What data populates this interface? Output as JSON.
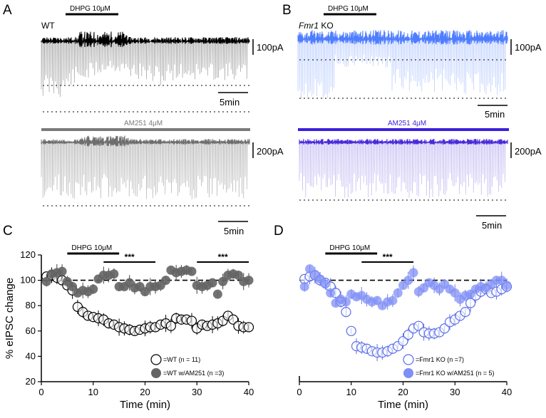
{
  "panels": {
    "a_label": "A",
    "b_label": "B",
    "c_label": "C",
    "d_label": "D",
    "dhpg_label": "DHPG 10μM",
    "wt_label": "WT",
    "fmr1_italic": "Fmr1",
    "ko_text": " KO",
    "am251_label": "AM251 4μM",
    "scale_100pA": "100pA",
    "scale_200pA": "200pA",
    "scale_5min": "5min",
    "sig_label": "***"
  },
  "colors": {
    "wt_trace": "#000000",
    "wt_am251_trace": "#6e6e6e",
    "ko_trace": "#4f7dff",
    "ko_am251_trace": "#4a2bd9",
    "ko_marker": "#7f8ff5",
    "wt_am251_marker": "#646464",
    "am251_bar_left": "#7a7a7a",
    "am251_bar_right": "#3b1fdc"
  },
  "chart_data": [
    {
      "type": "scatter",
      "panel": "C",
      "xlabel": "Time (min)",
      "ylabel": "% eIPSC change",
      "xlim": [
        0,
        40
      ],
      "ylim": [
        20,
        120
      ],
      "x_ticks": [
        0,
        10,
        20,
        30,
        40
      ],
      "y_ticks": [
        20,
        40,
        60,
        80,
        100,
        120
      ],
      "baseline": 100,
      "drug_bar": {
        "label": "DHPG 10μM",
        "from": 5,
        "to": 15
      },
      "significance": [
        {
          "label": "***",
          "from": 12,
          "to": 22
        },
        {
          "label": "***",
          "from": 30,
          "to": 40
        }
      ],
      "series": [
        {
          "name": "=WT (n = 11)",
          "marker": "open",
          "x": [
            1,
            2,
            3,
            4,
            5,
            6,
            7,
            8,
            9,
            10,
            11,
            12,
            13,
            14,
            15,
            16,
            17,
            18,
            19,
            20,
            21,
            22,
            23,
            24,
            25,
            26,
            27,
            28,
            29,
            30,
            31,
            32,
            33,
            34,
            35,
            36,
            37,
            38,
            39,
            40
          ],
          "y": [
            103,
            104,
            102,
            100,
            96,
            92,
            79,
            75,
            72,
            71,
            70,
            69,
            66,
            65,
            63,
            62,
            61,
            60,
            61,
            62,
            63,
            63,
            65,
            66,
            64,
            70,
            69,
            69,
            68,
            62,
            65,
            64,
            65,
            66,
            68,
            72,
            69,
            64,
            63,
            63
          ]
        },
        {
          "name": "=WT w/AM251 (n =3)",
          "marker": "filled",
          "x": [
            1,
            2,
            3,
            4,
            5,
            6,
            7,
            8,
            9,
            10,
            11,
            12,
            13,
            14,
            15,
            16,
            17,
            18,
            19,
            20,
            21,
            22,
            23,
            24,
            25,
            26,
            27,
            28,
            29,
            30,
            31,
            32,
            33,
            34,
            35,
            36,
            37,
            38,
            39,
            40
          ],
          "y": [
            99,
            105,
            106,
            107,
            99,
            95,
            90,
            92,
            91,
            93,
            101,
            104,
            104,
            105,
            95,
            95,
            98,
            94,
            95,
            91,
            95,
            95,
            96,
            100,
            108,
            106,
            107,
            108,
            107,
            96,
            95,
            96,
            98,
            89,
            99,
            104,
            105,
            104,
            99,
            100
          ]
        }
      ]
    },
    {
      "type": "scatter",
      "panel": "D",
      "xlabel": "Time (min)",
      "xlim": [
        0,
        40
      ],
      "ylim": [
        20,
        120
      ],
      "x_ticks": [
        0,
        10,
        20,
        30,
        40
      ],
      "baseline": 100,
      "drug_bar": {
        "label": "DHPG 10μM",
        "from": 5,
        "to": 15
      },
      "significance": [
        {
          "label": "***",
          "from": 12,
          "to": 22
        }
      ],
      "series": [
        {
          "name": "=Fmr1 KO (n =7)",
          "marker": "open",
          "x": [
            1,
            2,
            3,
            4,
            5,
            6,
            7,
            8,
            9,
            10,
            11,
            12,
            13,
            14,
            15,
            16,
            17,
            18,
            19,
            20,
            21,
            22,
            23,
            24,
            25,
            26,
            27,
            28,
            29,
            30,
            31,
            32,
            33,
            34,
            35,
            36,
            37,
            38,
            39,
            40
          ],
          "y": [
            101,
            103,
            104,
            100,
            98,
            95,
            90,
            83,
            75,
            60,
            48,
            47,
            46,
            44,
            43,
            43,
            44,
            46,
            48,
            52,
            57,
            62,
            64,
            59,
            58,
            58,
            59,
            62,
            67,
            69,
            72,
            75,
            82,
            88,
            91,
            93,
            90,
            91,
            93,
            95
          ]
        },
        {
          "name": "=Fmr1 KO w/AM251 (n = 5)",
          "marker": "filled",
          "x": [
            1,
            2,
            3,
            4,
            5,
            6,
            7,
            8,
            9,
            10,
            11,
            12,
            13,
            14,
            15,
            16,
            17,
            18,
            19,
            20,
            21,
            22,
            23,
            24,
            25,
            26,
            27,
            28,
            29,
            30,
            31,
            32,
            33,
            34,
            35,
            36,
            37,
            38,
            39,
            40
          ],
          "y": [
            95,
            109,
            104,
            101,
            97,
            90,
            82,
            85,
            83,
            89,
            87,
            88,
            85,
            83,
            84,
            80,
            83,
            84,
            90,
            96,
            100,
            106,
            91,
            94,
            98,
            96,
            93,
            97,
            93,
            90,
            85,
            88,
            89,
            93,
            95,
            94,
            97,
            100,
            100,
            96
          ]
        }
      ]
    }
  ]
}
